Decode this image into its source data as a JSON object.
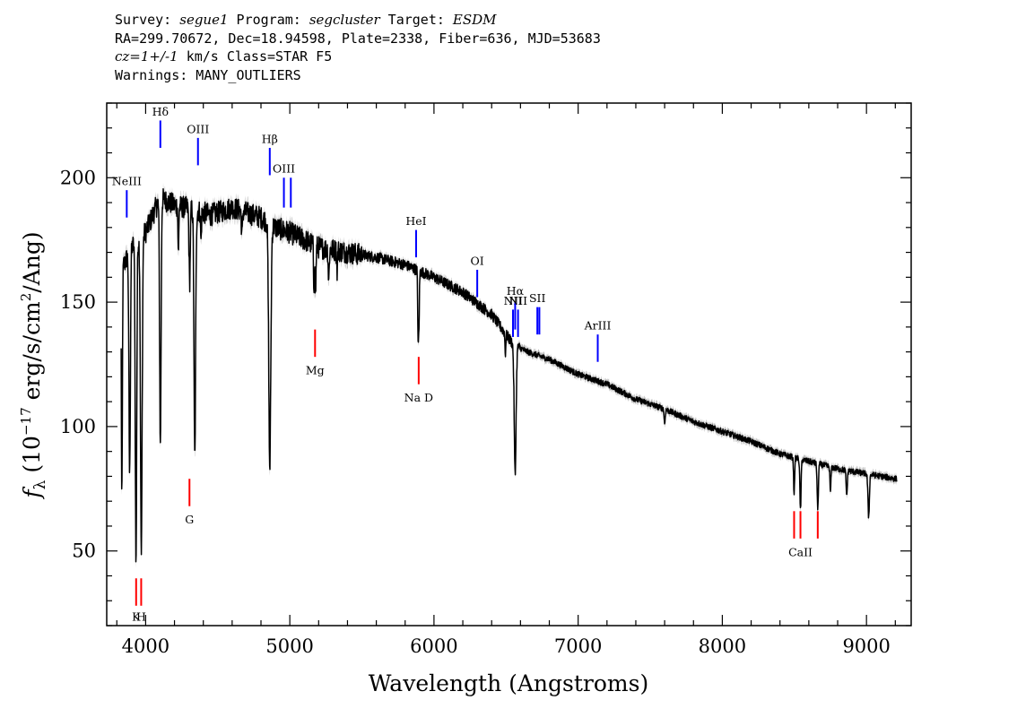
{
  "header": {
    "line1": {
      "survey_label": "Survey:",
      "survey": "segue1",
      "program_label": "Program:",
      "program": "segcluster",
      "target_label": "Target:",
      "target": "ESDM"
    },
    "line2": "RA=299.70672, Dec=18.94598, Plate=2338, Fiber=636, MJD=53683",
    "line3": {
      "redshift": "cz=1+/-1",
      "rest": "km/s Class=STAR F5"
    },
    "line4": "Warnings: MANY_OUTLIERS"
  },
  "chart_data": {
    "type": "line",
    "xlabel": "Wavelength (Angstroms)",
    "ylabel_parts": {
      "f": "f",
      "sub": "λ",
      "open": " (10",
      "exp": "−17",
      "mid": " erg/s/cm",
      "exp2": "2",
      "close": "/Ang)"
    },
    "xlim": [
      3730,
      9310
    ],
    "ylim": [
      20,
      230
    ],
    "x_ticks": [
      4000,
      5000,
      6000,
      7000,
      8000,
      9000
    ],
    "x_tick_labels": [
      "4000",
      "5000",
      "6000",
      "7000",
      "8000",
      "9000"
    ],
    "y_ticks": [
      50,
      100,
      150,
      200
    ],
    "y_tick_labels": [
      "50",
      "100",
      "150",
      "200"
    ],
    "x_minor_step": 200,
    "y_minor_step": 10,
    "continuum": [
      [
        3850,
        165
      ],
      [
        3900,
        172
      ],
      [
        4000,
        178
      ],
      [
        4100,
        192
      ],
      [
        4200,
        189
      ],
      [
        4350,
        187
      ],
      [
        4450,
        185
      ],
      [
        4600,
        188
      ],
      [
        4800,
        184
      ],
      [
        4900,
        180
      ],
      [
        5000,
        178
      ],
      [
        5200,
        172
      ],
      [
        5400,
        170
      ],
      [
        5600,
        168
      ],
      [
        5800,
        165
      ],
      [
        6000,
        160
      ],
      [
        6200,
        154
      ],
      [
        6400,
        145
      ],
      [
        6550,
        133
      ],
      [
        6650,
        130
      ],
      [
        6800,
        127
      ],
      [
        7000,
        121
      ],
      [
        7200,
        117
      ],
      [
        7400,
        111
      ],
      [
        7600,
        107
      ],
      [
        7800,
        102
      ],
      [
        8000,
        98
      ],
      [
        8200,
        94
      ],
      [
        8400,
        89
      ],
      [
        8600,
        86
      ],
      [
        8800,
        83
      ],
      [
        9000,
        81
      ],
      [
        9200,
        79
      ]
    ],
    "absorption": [
      {
        "x": 3835,
        "depth": 95,
        "w": 5
      },
      {
        "x": 3889,
        "depth": 90,
        "w": 7
      },
      {
        "x": 3933,
        "depth": 130,
        "w": 7
      },
      {
        "x": 3970,
        "depth": 128,
        "w": 8
      },
      {
        "x": 4102,
        "depth": 100,
        "w": 7
      },
      {
        "x": 4227,
        "depth": 20,
        "w": 4
      },
      {
        "x": 4305,
        "depth": 30,
        "w": 6
      },
      {
        "x": 4341,
        "depth": 100,
        "w": 8
      },
      {
        "x": 4384,
        "depth": 12,
        "w": 4
      },
      {
        "x": 4668,
        "depth": 10,
        "w": 5
      },
      {
        "x": 4861,
        "depth": 98,
        "w": 10
      },
      {
        "x": 5167,
        "depth": 16,
        "w": 4
      },
      {
        "x": 5178,
        "depth": 20,
        "w": 5
      },
      {
        "x": 5270,
        "depth": 12,
        "w": 5
      },
      {
        "x": 5328,
        "depth": 8,
        "w": 4
      },
      {
        "x": 5890,
        "depth": 28,
        "w": 4
      },
      {
        "x": 5896,
        "depth": 20,
        "w": 4
      },
      {
        "x": 6495,
        "depth": 8,
        "w": 4
      },
      {
        "x": 6563,
        "depth": 52,
        "w": 9
      },
      {
        "x": 7600,
        "depth": 6,
        "w": 5
      },
      {
        "x": 8498,
        "depth": 14,
        "w": 5
      },
      {
        "x": 8542,
        "depth": 20,
        "w": 6
      },
      {
        "x": 8662,
        "depth": 18,
        "w": 6
      },
      {
        "x": 8750,
        "depth": 10,
        "w": 5
      },
      {
        "x": 8863,
        "depth": 10,
        "w": 6
      },
      {
        "x": 9015,
        "depth": 17,
        "w": 7
      }
    ],
    "emission_lines": [
      {
        "label": "NeIII",
        "x": 3869,
        "y1": 184,
        "y2": 195,
        "label_y": 197
      },
      {
        "label": "Hδ",
        "x": 4102,
        "y1": 212,
        "y2": 223,
        "label_y": 225
      },
      {
        "label": "OIII",
        "x": 4363,
        "y1": 205,
        "y2": 216,
        "label_y": 218
      },
      {
        "label": "Hβ",
        "x": 4861,
        "y1": 201,
        "y2": 212,
        "label_y": 214
      },
      {
        "label": "OIII",
        "x": 4959,
        "y1": 188,
        "y2": 200,
        "label_y": 202
      },
      {
        "label": "",
        "x": 5007,
        "y1": 188,
        "y2": 200,
        "label_y": 0
      },
      {
        "label": "HeI",
        "x": 5876,
        "y1": 168,
        "y2": 179,
        "label_y": 181
      },
      {
        "label": "OI",
        "x": 6300,
        "y1": 152,
        "y2": 163,
        "label_y": 165
      },
      {
        "label": "NII",
        "x": 6548,
        "y1": 136,
        "y2": 147,
        "label_y": 149
      },
      {
        "label": "Hα",
        "x": 6563,
        "y1": 139,
        "y2": 150,
        "label_y": 153
      },
      {
        "label": "NII",
        "x": 6583,
        "y1": 136,
        "y2": 147,
        "label_y": 149
      },
      {
        "label": "SII",
        "x": 6717,
        "y1": 137,
        "y2": 148,
        "label_y": 150
      },
      {
        "label": "",
        "x": 6731,
        "y1": 137,
        "y2": 148,
        "label_y": 0
      },
      {
        "label": "ArIII",
        "x": 7136,
        "y1": 126,
        "y2": 137,
        "label_y": 139
      }
    ],
    "absorption_labels": [
      {
        "label": "K",
        "x": 3934,
        "y1": 28,
        "y2": 39,
        "label_y": 22
      },
      {
        "label": "H",
        "x": 3969,
        "y1": 28,
        "y2": 39,
        "label_y": 22
      },
      {
        "label": "G",
        "x": 4304,
        "y1": 68,
        "y2": 79,
        "label_y": 61
      },
      {
        "label": "Mg",
        "x": 5175,
        "y1": 128,
        "y2": 139,
        "label_y": 121
      },
      {
        "label": "Na D",
        "x": 5894,
        "y1": 117,
        "y2": 128,
        "label_y": 110
      },
      {
        "label": "",
        "x": 8498,
        "y1": 55,
        "y2": 66,
        "label_y": 0
      },
      {
        "label": "CaII",
        "x": 8542,
        "y1": 55,
        "y2": 66,
        "label_y": 48
      },
      {
        "label": "",
        "x": 8662,
        "y1": 55,
        "y2": 66,
        "label_y": 0
      }
    ],
    "colors": {
      "data": "#000000",
      "error": "#b4b4b4",
      "emission": "#0000ff",
      "absorption": "#ff0000",
      "axes": "#000000"
    }
  }
}
